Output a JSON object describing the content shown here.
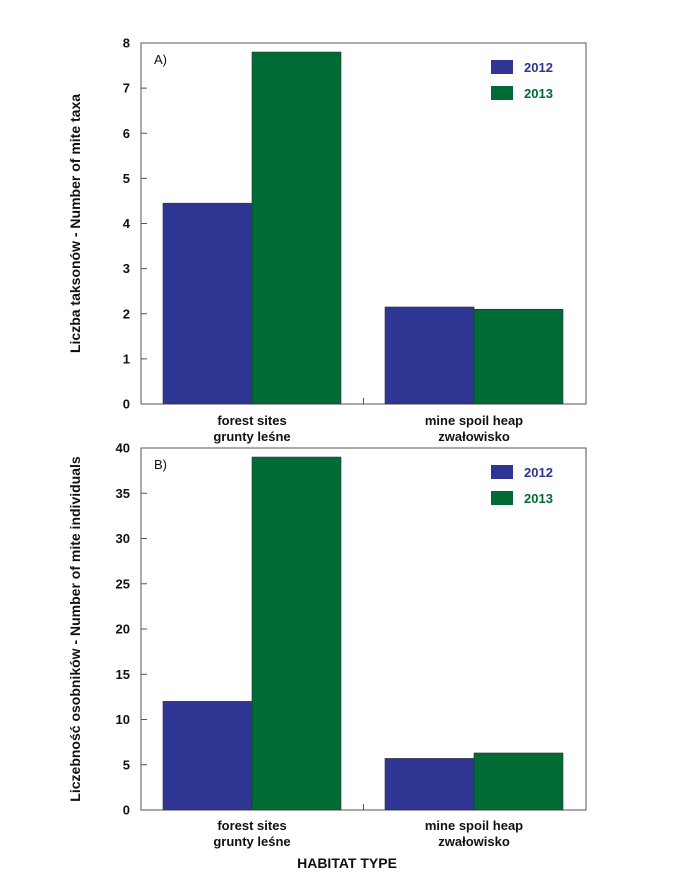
{
  "colors": {
    "2012": "#2e3592",
    "2013": "#006b35"
  },
  "x_title": "HABITAT TYPE",
  "chart_data": [
    {
      "type": "bar",
      "panel_label": "A)",
      "ylabel": "Liczba taksonów - Number of mite taxa",
      "ylim": [
        0,
        8
      ],
      "yticks": [
        0,
        1,
        2,
        3,
        4,
        5,
        6,
        7,
        8
      ],
      "categories": [
        {
          "line1": "forest sites",
          "line2": "grunty leśne"
        },
        {
          "line1": "mine spoil heap",
          "line2": "zwałowisko"
        }
      ],
      "series": [
        {
          "name": "2012",
          "values": [
            4.45,
            2.15
          ]
        },
        {
          "name": "2013",
          "values": [
            7.8,
            2.1
          ]
        }
      ],
      "legend_position": "top-right",
      "grid": false
    },
    {
      "type": "bar",
      "panel_label": "B)",
      "ylabel": "Liczebność osobników - Number of mite individuals",
      "ylim": [
        0,
        40
      ],
      "yticks": [
        0,
        5,
        10,
        15,
        20,
        25,
        30,
        35,
        40
      ],
      "categories": [
        {
          "line1": "forest sites",
          "line2": "grunty leśne"
        },
        {
          "line1": "mine spoil heap",
          "line2": "zwałowisko"
        }
      ],
      "series": [
        {
          "name": "2012",
          "values": [
            12,
            5.7
          ]
        },
        {
          "name": "2013",
          "values": [
            39,
            6.3
          ]
        }
      ],
      "legend_position": "top-right",
      "grid": false
    }
  ]
}
